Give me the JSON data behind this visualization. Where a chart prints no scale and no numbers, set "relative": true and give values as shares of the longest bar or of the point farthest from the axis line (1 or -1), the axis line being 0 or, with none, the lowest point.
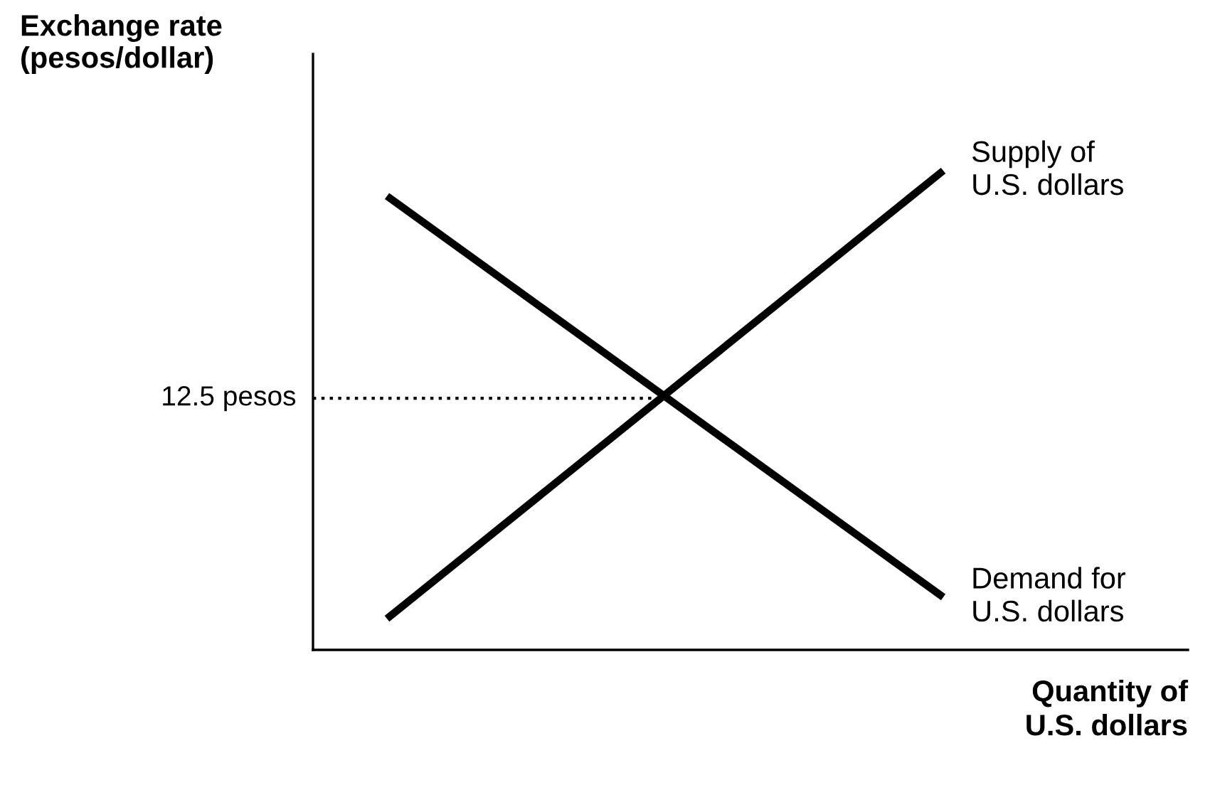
{
  "chart_data": {
    "type": "line",
    "relative": true,
    "ylabel": "Exchange rate\n(pesos/dollar)",
    "xlabel": "Quantity of\nU.S. dollars",
    "categories": [
      null,
      null
    ],
    "series": [
      {
        "name": "Supply of\nU.S. dollars",
        "color": "#000000",
        "values": [
          0.065,
          1.0
        ]
      },
      {
        "name": "Demand for\nU.S. dollars",
        "color": "#000000",
        "values": [
          0.947,
          0.11
        ]
      }
    ],
    "ref_lines": [
      {
        "axis": "y",
        "value": 0.525,
        "label": "12.5 pesos",
        "line_style": "dotted",
        "color": "#000000"
      }
    ],
    "legend": false,
    "marker": "none",
    "line_style": "solid"
  }
}
